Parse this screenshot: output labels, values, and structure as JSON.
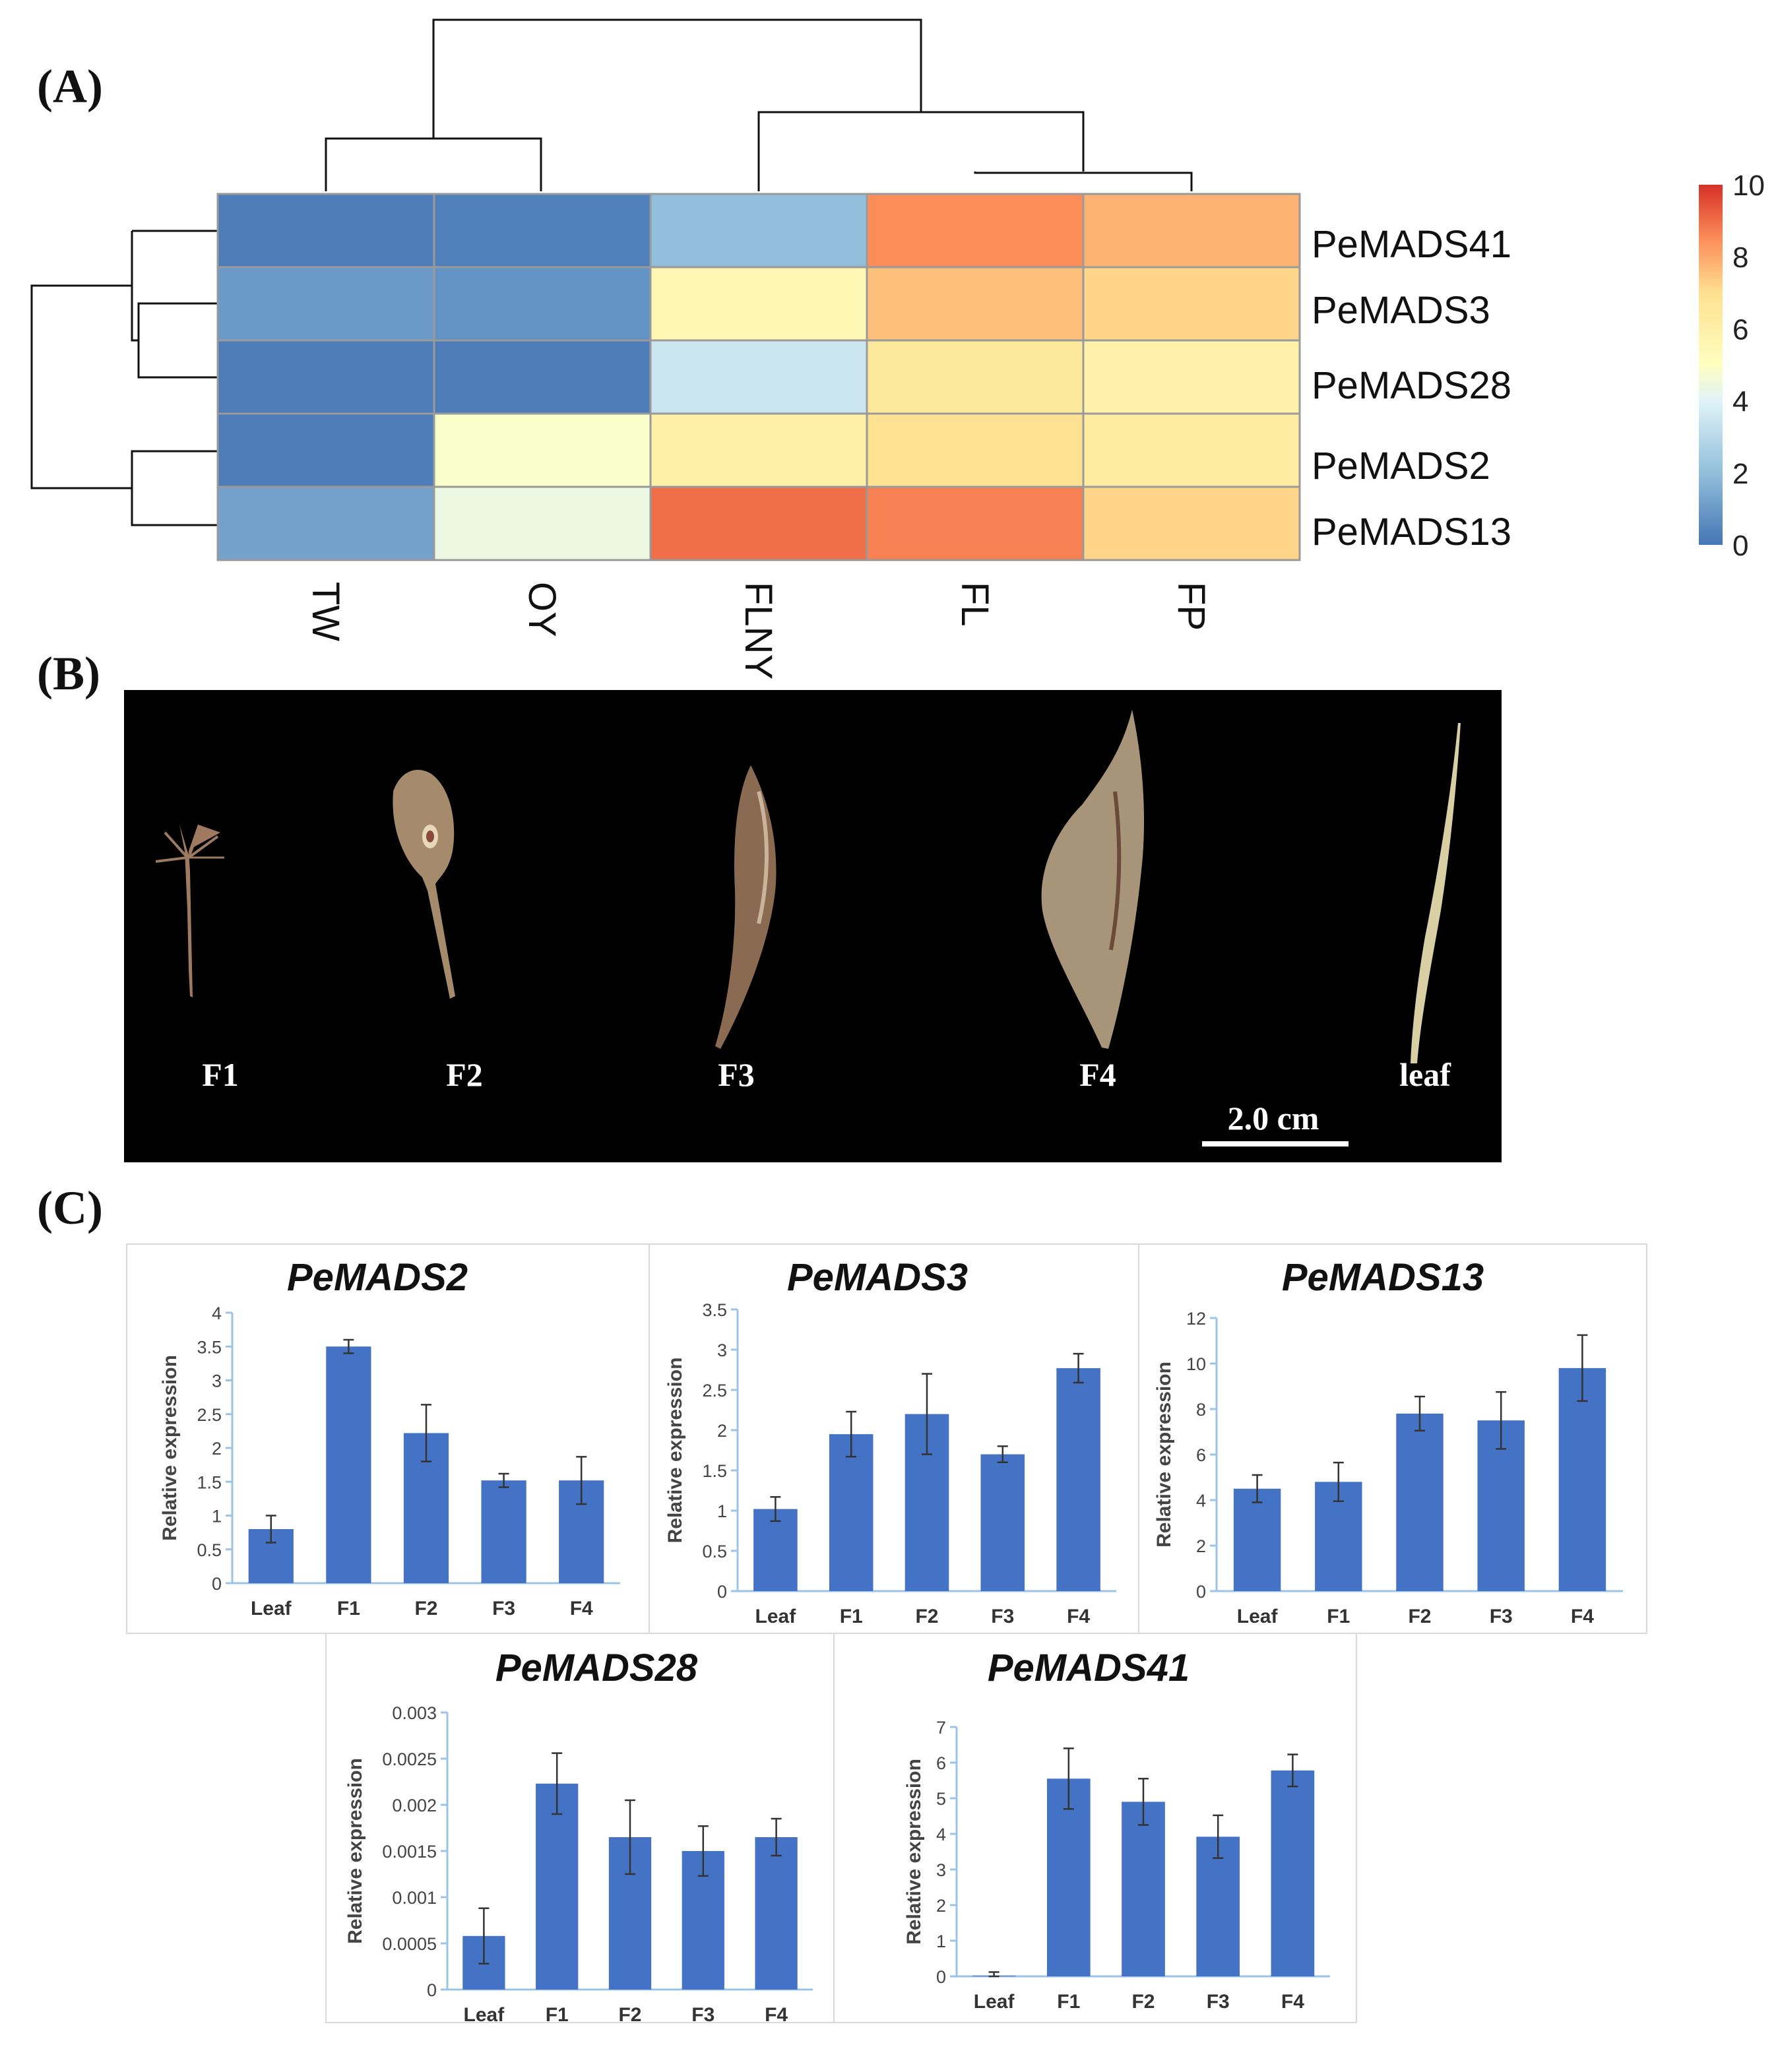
{
  "panels": {
    "a": "(A)",
    "b": "(B)",
    "c": "(C)"
  },
  "colors": {
    "cell_border": "#9a9a9a",
    "dendrogram": "#111111",
    "bar": "#4472c4",
    "axis": "#9dc3e6",
    "photo_bg": "#000000"
  },
  "heatmap": {
    "columns": [
      "TW",
      "OY",
      "FLNY",
      "FL",
      "FP"
    ],
    "genes": [
      "PeMADS41",
      "PeMADS3",
      "PeMADS28",
      "PeMADS2",
      "PeMADS13"
    ],
    "values": [
      [
        0.2,
        0.3,
        2.0,
        8.5,
        7.8
      ],
      [
        1.0,
        0.8,
        5.5,
        7.6,
        7.2
      ],
      [
        0.2,
        0.2,
        3.5,
        6.5,
        5.9
      ],
      [
        0.2,
        4.8,
        6.0,
        6.9,
        6.2
      ],
      [
        1.2,
        4.4,
        9.0,
        8.7,
        7.2
      ]
    ],
    "legend": {
      "min": 0,
      "max": 10,
      "ticks": [
        "10",
        "8",
        "6",
        "4",
        "2",
        "0"
      ]
    }
  },
  "photo": {
    "labels": [
      "F1",
      "F2",
      "F3",
      "F4",
      "leaf"
    ],
    "scale_bar": "2.0 cm"
  },
  "chart_data": [
    {
      "type": "bar",
      "title": "PeMADS2",
      "ylabel": "Relative expression",
      "categories": [
        "Leaf",
        "F1",
        "F2",
        "F3",
        "F4"
      ],
      "values": [
        0.8,
        3.5,
        2.22,
        1.52,
        1.52
      ],
      "errors": [
        0.2,
        0.1,
        0.42,
        0.1,
        0.35
      ],
      "ylim": [
        0,
        4
      ],
      "yticks": [
        "0",
        "0.5",
        "1",
        "1.5",
        "2",
        "2.5",
        "3",
        "3.5",
        "4"
      ]
    },
    {
      "type": "bar",
      "title": "PeMADS3",
      "ylabel": "Relative expression",
      "categories": [
        "Leaf",
        "F1",
        "F2",
        "F3",
        "F4"
      ],
      "values": [
        1.02,
        1.95,
        2.2,
        1.7,
        2.77
      ],
      "errors": [
        0.15,
        0.28,
        0.5,
        0.1,
        0.18
      ],
      "ylim": [
        0,
        3.5
      ],
      "yticks": [
        "0",
        "0.5",
        "1",
        "1.5",
        "2",
        "2.5",
        "3",
        "3.5"
      ]
    },
    {
      "type": "bar",
      "title": "PeMADS13",
      "ylabel": "Relative expression",
      "categories": [
        "Leaf",
        "F1",
        "F2",
        "F3",
        "F4"
      ],
      "values": [
        4.5,
        4.8,
        7.8,
        7.5,
        9.8
      ],
      "errors": [
        0.6,
        0.85,
        0.75,
        1.25,
        1.45
      ],
      "ylim": [
        0,
        12
      ],
      "yticks": [
        "0",
        "2",
        "4",
        "6",
        "8",
        "10",
        "12"
      ]
    },
    {
      "type": "bar",
      "title": "PeMADS28",
      "ylabel": "Relative expression",
      "categories": [
        "Leaf",
        "F1",
        "F2",
        "F3",
        "F4"
      ],
      "values": [
        0.00058,
        0.00223,
        0.00165,
        0.0015,
        0.00165
      ],
      "errors": [
        0.0003,
        0.00033,
        0.0004,
        0.00027,
        0.0002
      ],
      "ylim": [
        0,
        0.003
      ],
      "yticks": [
        "0",
        "0.0005",
        "0.001",
        "0.0015",
        "0.002",
        "0.0025",
        "0.003"
      ]
    },
    {
      "type": "bar",
      "title": "PeMADS41",
      "ylabel": "Relative expression",
      "categories": [
        "Leaf",
        "F1",
        "F2",
        "F3",
        "F4"
      ],
      "values": [
        0.02,
        5.55,
        4.9,
        3.92,
        5.78
      ],
      "errors": [
        0.1,
        0.85,
        0.65,
        0.6,
        0.45
      ],
      "ylim": [
        0,
        7
      ],
      "yticks": [
        "0",
        "1",
        "2",
        "3",
        "4",
        "5",
        "6",
        "7"
      ]
    }
  ]
}
